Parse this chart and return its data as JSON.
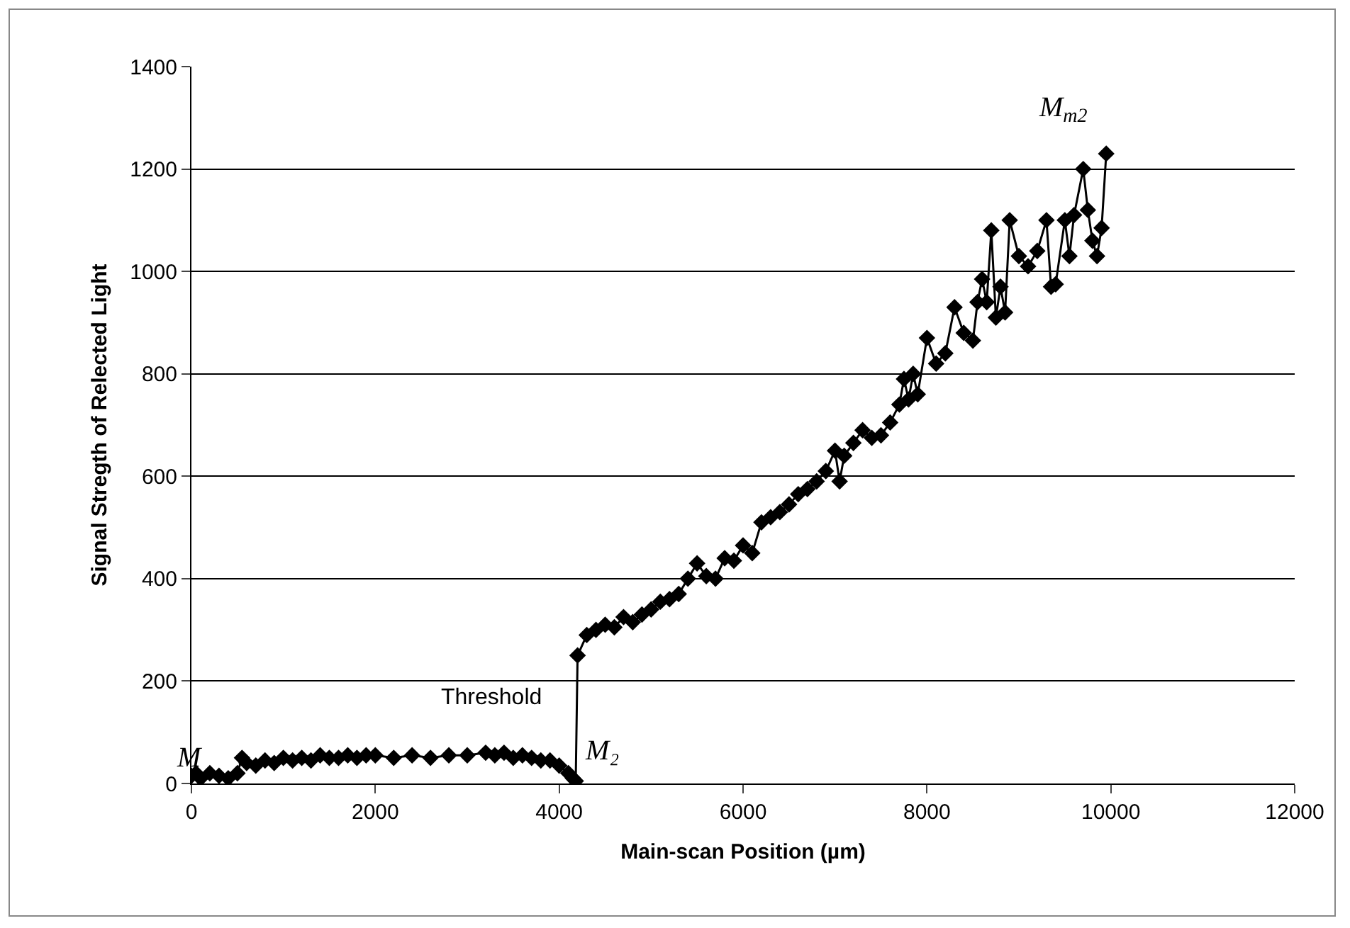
{
  "chart_data": {
    "type": "line",
    "xlabel": "Main-scan Position (µm)",
    "ylabel": "Signal Stregth of Relected Light",
    "xlim": [
      0,
      12000
    ],
    "xticks": [
      0,
      2000,
      4000,
      6000,
      8000,
      10000,
      12000
    ],
    "ylim": [
      0,
      1400
    ],
    "yticks": [
      0,
      200,
      400,
      600,
      800,
      1000,
      1200,
      1400
    ],
    "grid": "y",
    "marker": "diamond",
    "line_style": "solid",
    "series": [
      {
        "color": "#000000",
        "x": [
          0,
          50,
          100,
          200,
          300,
          400,
          500,
          550,
          600,
          700,
          800,
          900,
          1000,
          1100,
          1200,
          1300,
          1400,
          1500,
          1600,
          1700,
          1800,
          1900,
          2000,
          2200,
          2400,
          2600,
          2800,
          3000,
          3200,
          3300,
          3400,
          3500,
          3600,
          3700,
          3800,
          3900,
          4000,
          4100,
          4150,
          4180,
          4200,
          4300,
          4400,
          4500,
          4600,
          4700,
          4800,
          4900,
          5000,
          5100,
          5200,
          5300,
          5400,
          5500,
          5600,
          5700,
          5800,
          5900,
          6000,
          6100,
          6200,
          6300,
          6400,
          6500,
          6600,
          6700,
          6800,
          6900,
          7000,
          7050,
          7100,
          7200,
          7300,
          7400,
          7500,
          7600,
          7700,
          7750,
          7800,
          7850,
          7900,
          8000,
          8100,
          8200,
          8300,
          8400,
          8500,
          8550,
          8600,
          8650,
          8700,
          8750,
          8800,
          8850,
          8900,
          9000,
          9100,
          9200,
          9300,
          9350,
          9400,
          9500,
          9550,
          9600,
          9700,
          9750,
          9800,
          9850,
          9900,
          9950
        ],
        "values": [
          15,
          20,
          10,
          20,
          15,
          10,
          20,
          50,
          40,
          35,
          45,
          40,
          50,
          45,
          50,
          45,
          55,
          50,
          50,
          55,
          50,
          55,
          55,
          50,
          55,
          50,
          55,
          55,
          60,
          55,
          60,
          50,
          55,
          50,
          45,
          45,
          35,
          20,
          10,
          5,
          250,
          290,
          300,
          310,
          305,
          325,
          315,
          330,
          340,
          355,
          360,
          370,
          400,
          430,
          405,
          400,
          440,
          435,
          465,
          450,
          510,
          520,
          530,
          545,
          565,
          575,
          590,
          610,
          650,
          590,
          640,
          665,
          690,
          675,
          680,
          705,
          740,
          790,
          750,
          800,
          760,
          870,
          820,
          840,
          930,
          880,
          865,
          940,
          985,
          940,
          1080,
          910,
          970,
          920,
          1100,
          1030,
          1010,
          1040,
          1100,
          970,
          975,
          1100,
          1030,
          1110,
          1200,
          1120,
          1060,
          1030,
          1085,
          1230
        ]
      }
    ],
    "annotations": [
      {
        "text": "M",
        "x": 0,
        "y": 15
      },
      {
        "text": "Threshold",
        "x": 3200,
        "y": 60
      },
      {
        "text": "M₂",
        "x": 4180,
        "y": 5
      },
      {
        "text": "M$_{m2}$",
        "x": 9950,
        "y": 1230
      }
    ]
  }
}
